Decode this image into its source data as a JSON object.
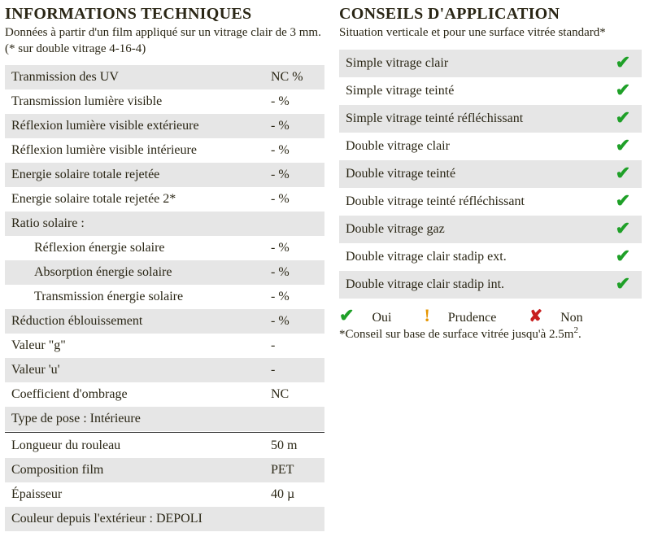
{
  "left": {
    "title": "INFORMATIONS TECHNIQUES",
    "subtitle": "Données à partir d'un film appliqué sur un vitrage clair de 3 mm. (* sur double vitrage 4-16-4)",
    "rows": [
      {
        "label": "Tranmission des UV",
        "value": "NC %",
        "striped": true
      },
      {
        "label": "Transmission lumière visible",
        "value": "- %",
        "striped": false
      },
      {
        "label": "Réflexion lumière visible extérieure",
        "value": "- %",
        "striped": true
      },
      {
        "label": "Réflexion lumière visible intérieure",
        "value": "- %",
        "striped": false
      },
      {
        "label": "Energie solaire totale rejetée",
        "value": "- %",
        "striped": true
      },
      {
        "label": "Energie solaire totale rejetée 2*",
        "value": "- %",
        "striped": false
      },
      {
        "label": "Ratio solaire :",
        "value": "",
        "striped": true
      },
      {
        "label": "Réflexion énergie solaire",
        "value": "- %",
        "striped": false,
        "indent": true
      },
      {
        "label": "Absorption énergie solaire",
        "value": "- %",
        "striped": true,
        "indent": true
      },
      {
        "label": "Transmission énergie solaire",
        "value": "- %",
        "striped": false,
        "indent": true
      },
      {
        "label": "Réduction éblouissement",
        "value": "- %",
        "striped": true
      },
      {
        "label": "Valeur \"g\"",
        "value": "-",
        "striped": false
      },
      {
        "label": "Valeur 'u'",
        "value": "-",
        "striped": true
      },
      {
        "label": "Coefficient d'ombrage",
        "value": "NC",
        "striped": false
      },
      {
        "label": "Type de pose : Intérieure",
        "value": "",
        "striped": true
      }
    ],
    "rows2": [
      {
        "label": "Longueur du rouleau",
        "value": "50 m",
        "striped": false
      },
      {
        "label": "Composition film",
        "value": "PET",
        "striped": true
      },
      {
        "label": "Épaisseur",
        "value": "40 µ",
        "striped": false
      },
      {
        "label": "Couleur depuis l'extérieur : DEPOLI",
        "value": "",
        "striped": true
      }
    ]
  },
  "right": {
    "title": "CONSEILS D'APPLICATION",
    "subtitle": "Situation verticale et pour une surface vitrée standard*",
    "rows": [
      {
        "label": "Simple vitrage clair",
        "status": "ok",
        "striped": true
      },
      {
        "label": "Simple vitrage teinté",
        "status": "ok",
        "striped": false
      },
      {
        "label": "Simple vitrage teinté réfléchissant",
        "status": "ok",
        "striped": true
      },
      {
        "label": "Double vitrage clair",
        "status": "ok",
        "striped": false
      },
      {
        "label": "Double vitrage teinté",
        "status": "ok",
        "striped": true
      },
      {
        "label": "Double vitrage teinté réfléchissant",
        "status": "ok",
        "striped": false
      },
      {
        "label": "Double vitrage gaz",
        "status": "ok",
        "striped": true
      },
      {
        "label": "Double vitrage clair stadip ext.",
        "status": "ok",
        "striped": false
      },
      {
        "label": "Double vitrage clair stadip int.",
        "status": "ok",
        "striped": true
      }
    ],
    "legend": {
      "ok": "Oui",
      "warn": "Prudence",
      "no": "Non",
      "note_prefix": "*Conseil sur base de surface vitrée jusqu'à 2.5m",
      "note_suffix": "."
    }
  },
  "marks": {
    "ok": "✔",
    "warn": "!",
    "no": "✘"
  }
}
